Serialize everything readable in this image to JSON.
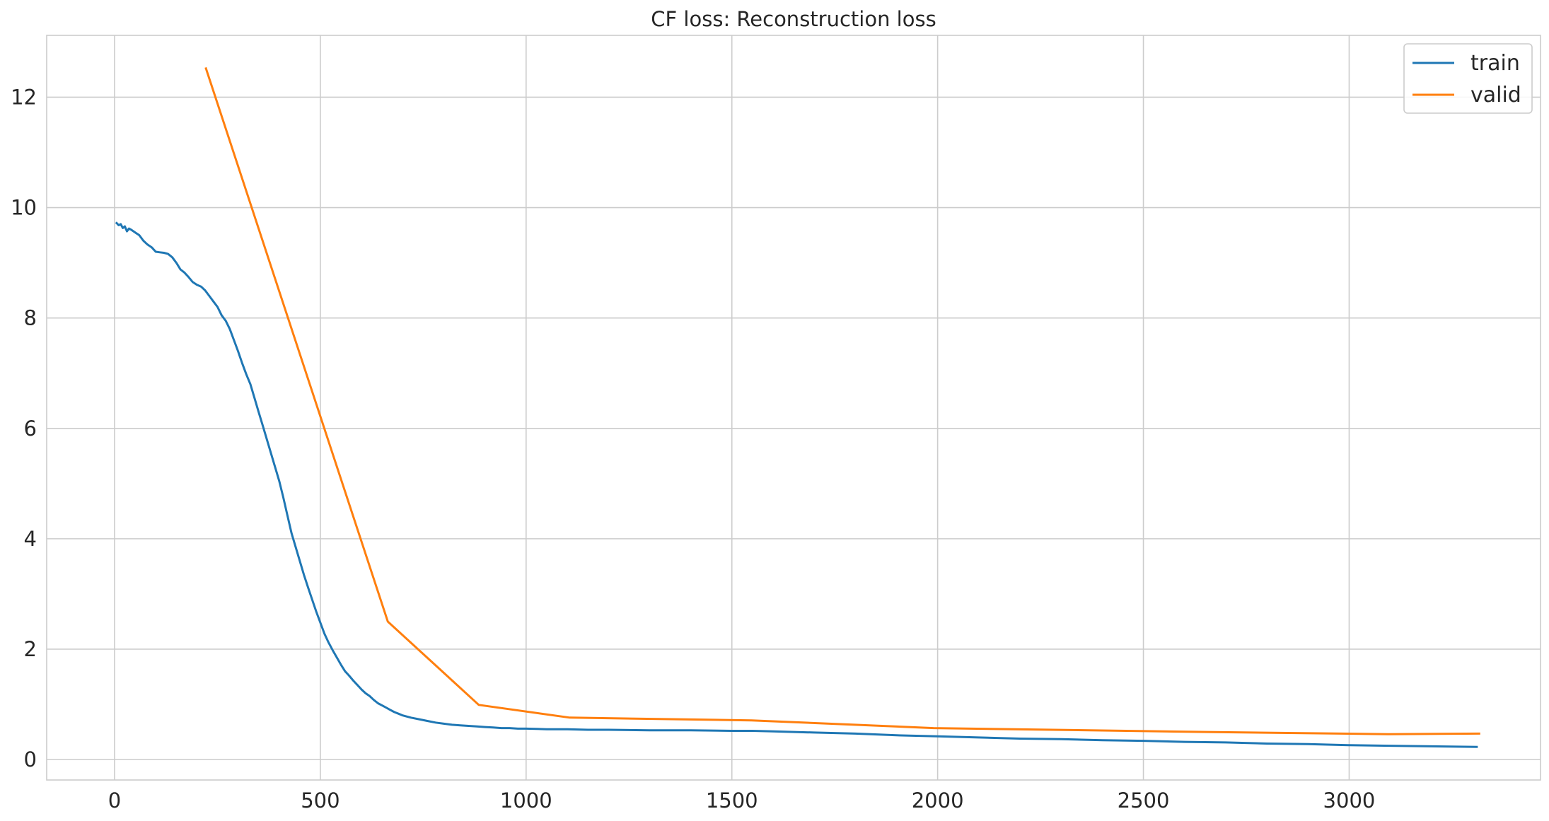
{
  "chart_data": {
    "type": "line",
    "title": "CF loss: Reconstruction loss",
    "xlabel": "",
    "ylabel": "",
    "xlim": [
      -165,
      3465
    ],
    "ylim": [
      -0.37,
      13.12
    ],
    "xticks": [
      0,
      500,
      1000,
      1500,
      2000,
      2500,
      3000
    ],
    "yticks": [
      0,
      2,
      4,
      6,
      8,
      10,
      12
    ],
    "grid": true,
    "legend_position": "top-right",
    "series": [
      {
        "name": "train",
        "color": "#1f77b4",
        "x": [
          5,
          10,
          15,
          20,
          25,
          30,
          35,
          40,
          50,
          60,
          70,
          80,
          90,
          100,
          110,
          120,
          130,
          140,
          150,
          160,
          170,
          180,
          190,
          200,
          210,
          220,
          230,
          240,
          250,
          260,
          270,
          280,
          290,
          300,
          310,
          320,
          330,
          340,
          350,
          360,
          370,
          380,
          390,
          400,
          410,
          420,
          430,
          440,
          450,
          460,
          470,
          480,
          490,
          500,
          510,
          520,
          530,
          540,
          550,
          560,
          570,
          580,
          590,
          600,
          610,
          620,
          630,
          640,
          650,
          660,
          670,
          680,
          690,
          700,
          720,
          740,
          760,
          780,
          800,
          820,
          840,
          860,
          880,
          900,
          920,
          940,
          960,
          980,
          1000,
          1050,
          1100,
          1150,
          1200,
          1300,
          1400,
          1500,
          1550,
          1600,
          1700,
          1800,
          1900,
          2000,
          2100,
          2200,
          2300,
          2400,
          2500,
          2600,
          2700,
          2800,
          2900,
          3000,
          3100,
          3200,
          3310
        ],
        "y": [
          9.72,
          9.68,
          9.7,
          9.63,
          9.66,
          9.57,
          9.62,
          9.6,
          9.55,
          9.5,
          9.4,
          9.33,
          9.28,
          9.2,
          9.19,
          9.18,
          9.16,
          9.1,
          9.0,
          8.88,
          8.82,
          8.74,
          8.65,
          8.6,
          8.57,
          8.5,
          8.4,
          8.3,
          8.2,
          8.05,
          7.95,
          7.8,
          7.6,
          7.4,
          7.18,
          6.98,
          6.8,
          6.55,
          6.3,
          6.05,
          5.8,
          5.55,
          5.3,
          5.05,
          4.75,
          4.42,
          4.1,
          3.85,
          3.6,
          3.35,
          3.12,
          2.9,
          2.68,
          2.48,
          2.28,
          2.12,
          1.98,
          1.85,
          1.72,
          1.6,
          1.52,
          1.43,
          1.35,
          1.27,
          1.2,
          1.15,
          1.08,
          1.02,
          0.98,
          0.94,
          0.9,
          0.86,
          0.83,
          0.8,
          0.76,
          0.73,
          0.7,
          0.67,
          0.65,
          0.63,
          0.62,
          0.61,
          0.6,
          0.59,
          0.58,
          0.57,
          0.57,
          0.56,
          0.56,
          0.55,
          0.55,
          0.54,
          0.54,
          0.53,
          0.53,
          0.52,
          0.52,
          0.51,
          0.49,
          0.47,
          0.44,
          0.42,
          0.4,
          0.38,
          0.37,
          0.35,
          0.34,
          0.32,
          0.31,
          0.29,
          0.28,
          0.26,
          0.25,
          0.24,
          0.23
        ]
      },
      {
        "name": "valid",
        "color": "#ff7f0e",
        "x": [
          222,
          664,
          885,
          1106,
          1548,
          1990,
          2653,
          3095,
          3316
        ],
        "y": [
          12.52,
          2.5,
          0.99,
          0.76,
          0.71,
          0.57,
          0.5,
          0.46,
          0.47
        ]
      }
    ]
  }
}
